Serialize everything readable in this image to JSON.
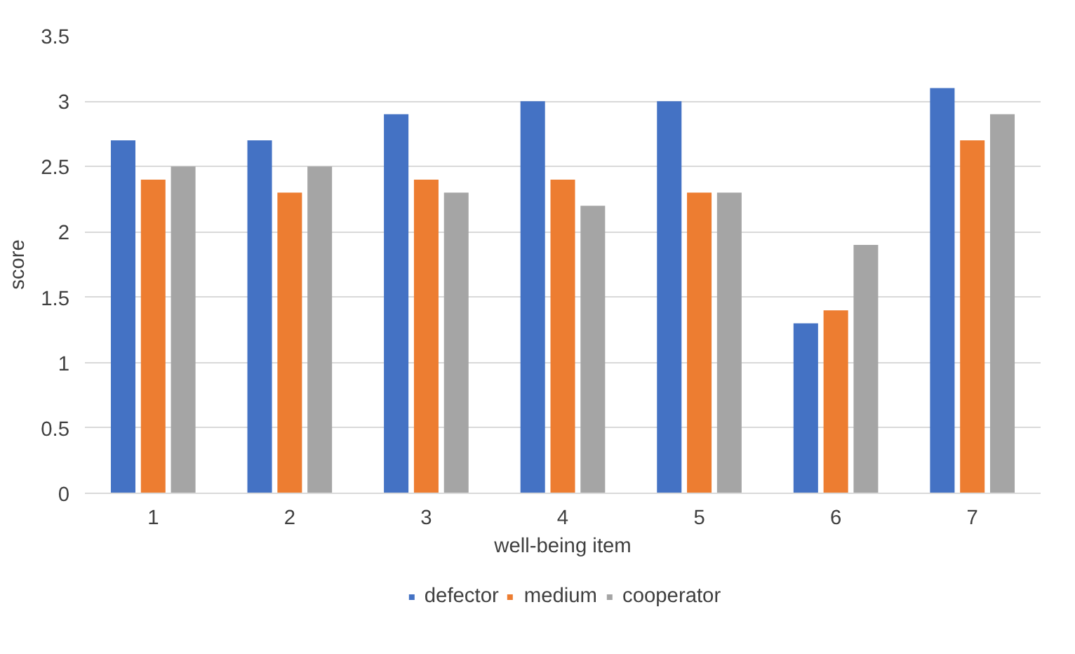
{
  "chart_data": {
    "type": "bar",
    "xlabel": "well-being item",
    "ylabel": "score",
    "categories": [
      "1",
      "2",
      "3",
      "4",
      "5",
      "6",
      "7"
    ],
    "series": [
      {
        "name": "defector",
        "color": "#4472c4",
        "values": [
          2.7,
          2.7,
          2.9,
          3.0,
          3.0,
          1.3,
          3.1
        ]
      },
      {
        "name": "medium",
        "color": "#ed7d31",
        "values": [
          2.4,
          2.3,
          2.4,
          2.4,
          2.3,
          1.4,
          2.7
        ]
      },
      {
        "name": "cooperator",
        "color": "#a5a5a5",
        "values": [
          2.5,
          2.5,
          2.3,
          2.2,
          2.3,
          1.9,
          2.9
        ]
      }
    ],
    "ylim": [
      0,
      3.5
    ],
    "yticks": [
      0,
      0.5,
      1,
      1.5,
      2,
      2.5,
      3,
      3.5
    ],
    "grid": "y",
    "legend": "bottom"
  }
}
